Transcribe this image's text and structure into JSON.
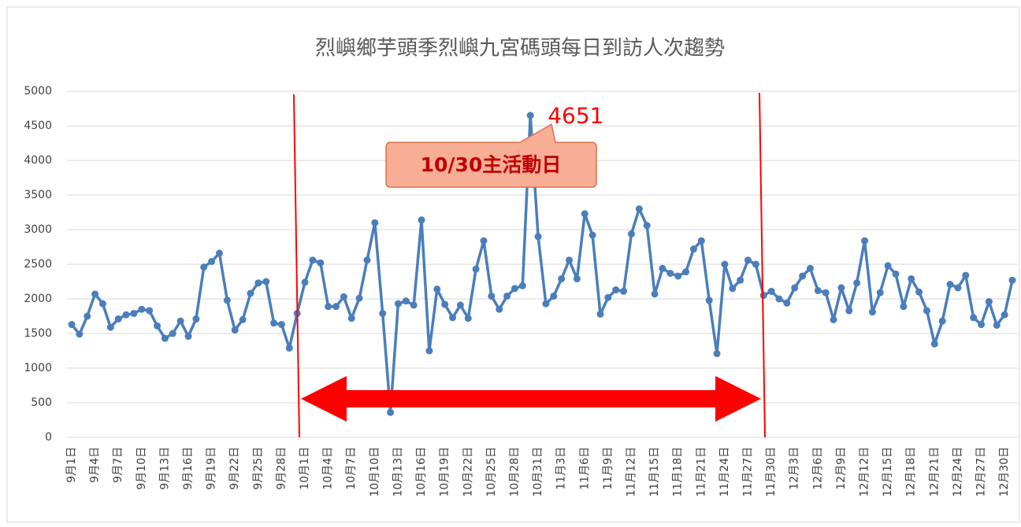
{
  "chart_data": {
    "type": "line",
    "title": "烈嶼鄉芋頭季烈嶼九宮碼頭每日到訪人次趨勢",
    "annotations": [
      "10/30主活動日"
    ],
    "categories": [
      "9月1日",
      null,
      null,
      "9月4日",
      null,
      null,
      "9月7日",
      null,
      null,
      "9月10日",
      null,
      null,
      "9月13日",
      null,
      null,
      "9月16日",
      null,
      null,
      "9月19日",
      null,
      null,
      "9月22日",
      null,
      null,
      "9月25日",
      null,
      null,
      "9月28日",
      null,
      null,
      "10月1日",
      null,
      null,
      "10月4日",
      null,
      null,
      "10月7日",
      null,
      null,
      "10月10日",
      null,
      null,
      "10月13日",
      null,
      null,
      "10月16日",
      null,
      null,
      "10月19日",
      null,
      null,
      "10月22日",
      null,
      null,
      "10月25日",
      null,
      null,
      "10月28日",
      null,
      null,
      "10月31日",
      null,
      null,
      "11月3日",
      null,
      null,
      "11月6日",
      null,
      null,
      "11月9日",
      null,
      null,
      "11月12日",
      null,
      null,
      "11月15日",
      null,
      null,
      "11月18日",
      null,
      null,
      "11月21日",
      null,
      null,
      "11月24日",
      null,
      null,
      "11月27日",
      null,
      null,
      "11月30日",
      null,
      null,
      "12月3日",
      null,
      null,
      "12月6日",
      null,
      null,
      "12月9日",
      null,
      null,
      "12月12日",
      null,
      null,
      "12月15日",
      null,
      null,
      "12月18日",
      null,
      null,
      "12月21日",
      null,
      null,
      "12月24日",
      null,
      null,
      "12月27日",
      null,
      null,
      "12月30日",
      null
    ],
    "series": [
      {
        "color": "#4a7ebb",
        "labeled_point": 59,
        "values": [
          1630,
          1490,
          1750,
          2070,
          1930,
          1590,
          1710,
          1770,
          1790,
          1850,
          1830,
          1610,
          1430,
          1500,
          1680,
          1460,
          1710,
          2460,
          2540,
          2660,
          1980,
          1550,
          1700,
          2080,
          2230,
          2250,
          1650,
          1630,
          1290,
          1790,
          2240,
          2560,
          2520,
          1890,
          1890,
          2030,
          1720,
          2010,
          2560,
          3100,
          1790,
          360,
          1930,
          1970,
          1910,
          3140,
          1250,
          2140,
          1920,
          1730,
          1910,
          1720,
          2430,
          2840,
          2040,
          1850,
          2040,
          2150,
          2190,
          4651,
          2900,
          1930,
          2040,
          2290,
          2560,
          2290,
          3230,
          2920,
          1780,
          2020,
          2130,
          2110,
          2940,
          3300,
          3060,
          2070,
          2440,
          2370,
          2330,
          2390,
          2720,
          2840,
          1980,
          1210,
          2500,
          2150,
          2270,
          2560,
          2500,
          2050,
          2110,
          2000,
          1940,
          2160,
          2330,
          2440,
          2120,
          2090,
          1700,
          2160,
          1830,
          2230,
          2840,
          1810,
          2090,
          2480,
          2360,
          1890,
          2290,
          2100,
          1830,
          1350,
          1680,
          2210,
          2160,
          2340,
          1730,
          1630,
          1960,
          1620,
          1770,
          2270
        ]
      }
    ],
    "ylim": [
      0,
      5000
    ],
    "yticks": [
      0,
      500,
      1000,
      1500,
      2000,
      2500,
      3000,
      3500,
      4000,
      4500,
      5000
    ],
    "grid": true
  }
}
